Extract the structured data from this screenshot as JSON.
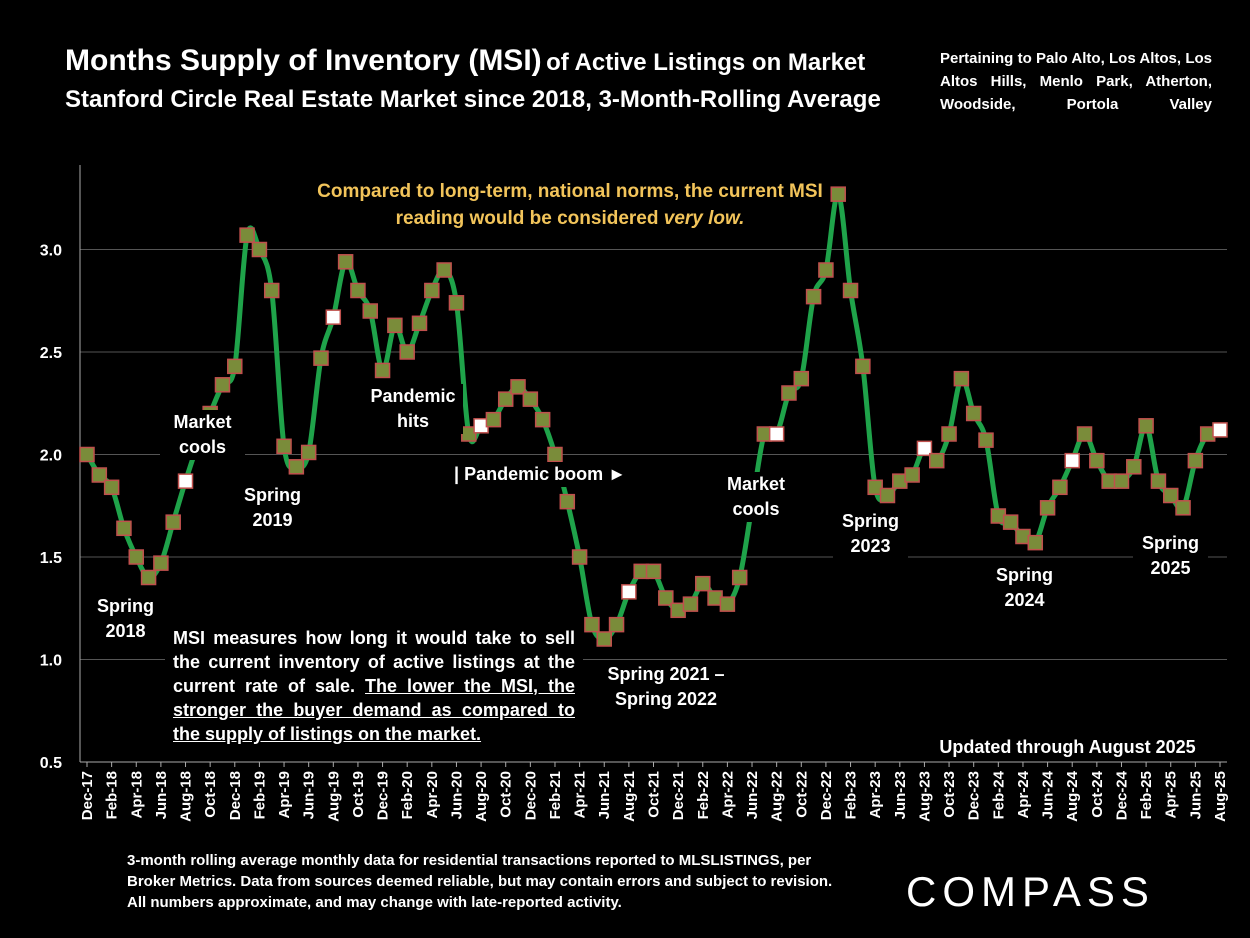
{
  "title": {
    "main": "Months Supply of Inventory (MSI)",
    "main_suffix": "of Active Listings on Market",
    "line2": "Stanford Circle Real Estate Market since 2018, 3-Month-Rolling Average"
  },
  "pertaining": "Pertaining to Palo Alto, Los Altos, Los Altos Hills, Menlo Park, Atherton, Woodside, Portola Valley",
  "compare_note": {
    "text": "Compared to long-term, national norms, the current MSI reading would be considered",
    "emphasis": "very low."
  },
  "msi_note": {
    "text": "MSI measures how long it would take to sell the current inventory of active listings at the current rate of sale.",
    "underlined": "The lower the MSI, the stronger the buyer demand as compared to the supply of listings on the market."
  },
  "updated": "Updated through August 2025",
  "footnote": "3-month rolling average monthly data for residential transactions reported to MLSLISTINGS, per Broker Metrics. Data from sources deemed reliable, but may contain errors and subject to revision. All numbers approximate, and may change with late-reported activity.",
  "logo": "COMPASS",
  "annotations": [
    {
      "key": "spring2018",
      "lines": [
        "Spring",
        "2018"
      ]
    },
    {
      "key": "market_cools_1",
      "lines": [
        "Market",
        "cools"
      ]
    },
    {
      "key": "spring2019",
      "lines": [
        "Spring",
        "2019"
      ]
    },
    {
      "key": "pandemic_hits",
      "lines": [
        "Pandemic",
        "hits"
      ]
    },
    {
      "key": "pandemic_boom",
      "lines": [
        "| Pandemic boom ►"
      ]
    },
    {
      "key": "spring2021_22",
      "lines": [
        "Spring 2021 –",
        "Spring 2022"
      ]
    },
    {
      "key": "market_cools_2",
      "lines": [
        "Market",
        "cools"
      ]
    },
    {
      "key": "spring2023",
      "lines": [
        "Spring",
        "2023"
      ]
    },
    {
      "key": "spring2024",
      "lines": [
        "Spring",
        "2024"
      ]
    },
    {
      "key": "spring2025",
      "lines": [
        "Spring",
        "2025"
      ]
    }
  ],
  "colors": {
    "line": "#1fa34a",
    "marker_fill": "#7a8c3a",
    "marker_border": "#c0504d",
    "highlight_fill": "#ffffff",
    "compare_text": "#f2c45a",
    "grid": "#555555"
  },
  "chart_data": {
    "type": "line",
    "ylim": [
      0.5,
      3.3
    ],
    "yticks": [
      "0.5",
      "1.0",
      "1.5",
      "2.0",
      "2.5",
      "3.0"
    ],
    "grid": true,
    "x_tick_labels": [
      "Dec-17",
      "Feb-18",
      "Apr-18",
      "Jun-18",
      "Aug-18",
      "Oct-18",
      "Dec-18",
      "Feb-19",
      "Apr-19",
      "Jun-19",
      "Aug-19",
      "Oct-19",
      "Dec-19",
      "Feb-20",
      "Apr-20",
      "Jun-20",
      "Aug-20",
      "Oct-20",
      "Dec-20",
      "Feb-21",
      "Apr-21",
      "Jun-21",
      "Aug-21",
      "Oct-21",
      "Dec-21",
      "Feb-22",
      "Apr-22",
      "Jun-22",
      "Aug-22",
      "Oct-22",
      "Dec-22",
      "Feb-23",
      "Apr-23",
      "Jun-23",
      "Aug-23",
      "Oct-23",
      "Dec-23",
      "Feb-24",
      "Apr-24",
      "Jun-24",
      "Aug-24",
      "Oct-24",
      "Dec-24",
      "Feb-25",
      "Apr-25",
      "Jun-25",
      "Aug-25"
    ],
    "x": [
      "Dec-17",
      "Jan-18",
      "Feb-18",
      "Mar-18",
      "Apr-18",
      "May-18",
      "Jun-18",
      "Jul-18",
      "Aug-18",
      "Sep-18",
      "Oct-18",
      "Nov-18",
      "Dec-18",
      "Jan-19",
      "Feb-19",
      "Mar-19",
      "Apr-19",
      "May-19",
      "Jun-19",
      "Jul-19",
      "Aug-19",
      "Sep-19",
      "Oct-19",
      "Nov-19",
      "Dec-19",
      "Jan-20",
      "Feb-20",
      "Mar-20",
      "Apr-20",
      "May-20",
      "Jun-20",
      "Jul-20",
      "Aug-20",
      "Sep-20",
      "Oct-20",
      "Nov-20",
      "Dec-20",
      "Jan-21",
      "Feb-21",
      "Mar-21",
      "Apr-21",
      "May-21",
      "Jun-21",
      "Jul-21",
      "Aug-21",
      "Sep-21",
      "Oct-21",
      "Nov-21",
      "Dec-21",
      "Jan-22",
      "Feb-22",
      "Mar-22",
      "Apr-22",
      "May-22",
      "Jun-22",
      "Jul-22",
      "Aug-22",
      "Sep-22",
      "Oct-22",
      "Nov-22",
      "Dec-22",
      "Jan-23",
      "Feb-23",
      "Mar-23",
      "Apr-23",
      "May-23",
      "Jun-23",
      "Jul-23",
      "Aug-23",
      "Sep-23",
      "Oct-23",
      "Nov-23",
      "Dec-23",
      "Jan-24",
      "Feb-24",
      "Mar-24",
      "Apr-24",
      "May-24",
      "Jun-24",
      "Jul-24",
      "Aug-24",
      "Sep-24",
      "Oct-24",
      "Nov-24",
      "Dec-24",
      "Jan-25",
      "Feb-25",
      "Mar-25",
      "Apr-25",
      "May-25",
      "Jun-25",
      "Jul-25",
      "Aug-25"
    ],
    "values": [
      2.0,
      1.9,
      1.84,
      1.64,
      1.5,
      1.4,
      1.47,
      1.67,
      1.87,
      2.05,
      2.2,
      2.34,
      2.43,
      3.07,
      3.0,
      2.8,
      2.04,
      1.94,
      2.01,
      2.47,
      2.67,
      2.94,
      2.8,
      2.7,
      2.41,
      2.63,
      2.5,
      2.64,
      2.8,
      2.9,
      2.74,
      2.1,
      2.14,
      2.17,
      2.27,
      2.33,
      2.27,
      2.17,
      2.0,
      1.77,
      1.5,
      1.17,
      1.1,
      1.17,
      1.33,
      1.43,
      1.43,
      1.3,
      1.24,
      1.27,
      1.37,
      1.3,
      1.27,
      1.4,
      1.75,
      2.1,
      2.1,
      2.3,
      2.37,
      2.77,
      2.9,
      3.27,
      2.8,
      2.43,
      1.84,
      1.8,
      1.87,
      1.9,
      2.03,
      1.97,
      2.1,
      2.37,
      2.2,
      2.07,
      1.7,
      1.67,
      1.6,
      1.57,
      1.74,
      1.84,
      1.97,
      2.1,
      1.97,
      1.87,
      1.87,
      1.94,
      2.14,
      1.87,
      1.8,
      1.74,
      1.97,
      2.1,
      2.12
    ],
    "highlighted_points": [
      "Aug-18",
      "Aug-19",
      "Aug-20",
      "Aug-21",
      "Aug-22",
      "Aug-23",
      "Aug-24",
      "Aug-25"
    ]
  }
}
